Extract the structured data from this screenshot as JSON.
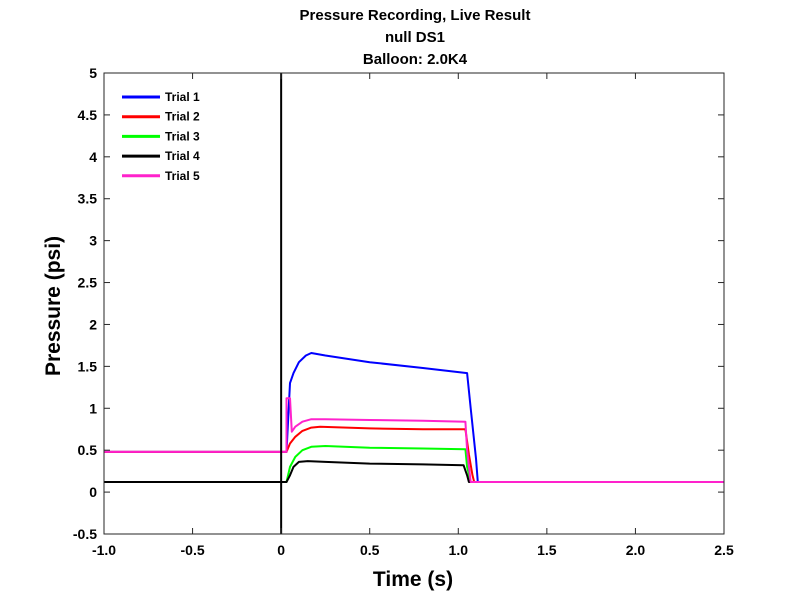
{
  "chart_data": {
    "type": "line",
    "title": [
      "Pressure Recording, Live Result",
      "null DS1",
      "Balloon: 2.0K4"
    ],
    "xlabel": "Time (s)",
    "ylabel": "Pressure (psi)",
    "xlim": [
      -1.0,
      2.5
    ],
    "ylim": [
      -0.5,
      5
    ],
    "x_ticks": [
      -1.0,
      -0.5,
      0,
      0.5,
      1.0,
      1.5,
      2.0,
      2.5
    ],
    "x_tick_labels": [
      "-1.0",
      "-0.5",
      "0",
      "0.5",
      "1.0",
      "1.5",
      "2.0",
      "2.5"
    ],
    "y_ticks": [
      -0.5,
      0,
      0.5,
      1,
      1.5,
      2,
      2.5,
      3,
      3.5,
      4,
      4.5,
      5
    ],
    "y_tick_labels": [
      "-0.5",
      "0",
      "0.5",
      "1",
      "1.5",
      "2",
      "2.5",
      "3",
      "3.5",
      "4",
      "4.5",
      "5"
    ],
    "grid": false,
    "legend_position": "top-left",
    "marker_line_x": 0,
    "series": [
      {
        "name": "Trial 1",
        "color": "#0000ff",
        "x": [
          -1.0,
          0.03,
          0.05,
          0.07,
          0.1,
          0.14,
          0.17,
          0.25,
          0.5,
          0.8,
          1.05,
          1.07,
          1.1,
          1.11,
          2.5
        ],
        "y": [
          0.48,
          0.48,
          1.3,
          1.42,
          1.55,
          1.63,
          1.66,
          1.63,
          1.55,
          1.48,
          1.42,
          1.0,
          0.4,
          0.12,
          0.12
        ]
      },
      {
        "name": "Trial 2",
        "color": "#ff0000",
        "x": [
          -1.0,
          0.03,
          0.05,
          0.08,
          0.12,
          0.17,
          0.22,
          0.5,
          0.8,
          1.04,
          1.06,
          1.08,
          1.09,
          2.5
        ],
        "y": [
          0.48,
          0.48,
          0.58,
          0.66,
          0.73,
          0.77,
          0.78,
          0.76,
          0.75,
          0.75,
          0.45,
          0.2,
          0.12,
          0.12
        ]
      },
      {
        "name": "Trial 3",
        "color": "#00ff00",
        "x": [
          -1.0,
          0.03,
          0.05,
          0.08,
          0.12,
          0.17,
          0.25,
          0.5,
          0.8,
          1.04,
          1.05,
          1.07,
          2.5
        ],
        "y": [
          0.12,
          0.12,
          0.3,
          0.42,
          0.5,
          0.54,
          0.55,
          0.53,
          0.52,
          0.51,
          0.3,
          0.12,
          0.12
        ]
      },
      {
        "name": "Trial 4",
        "color": "#000000",
        "x": [
          -1.0,
          0.03,
          0.05,
          0.07,
          0.1,
          0.15,
          0.25,
          0.5,
          0.8,
          1.03,
          1.05,
          1.06,
          2.5
        ],
        "y": [
          0.12,
          0.12,
          0.2,
          0.3,
          0.36,
          0.37,
          0.36,
          0.34,
          0.33,
          0.32,
          0.2,
          0.12,
          0.12
        ]
      },
      {
        "name": "Trial 5",
        "color": "#ff22cc",
        "x": [
          -1.0,
          0.03,
          0.03,
          0.05,
          0.06,
          0.08,
          0.12,
          0.17,
          0.25,
          0.5,
          0.8,
          1.04,
          1.05,
          1.07,
          2.5
        ],
        "y": [
          0.48,
          0.48,
          1.12,
          1.12,
          0.72,
          0.78,
          0.84,
          0.87,
          0.87,
          0.86,
          0.85,
          0.84,
          0.5,
          0.12,
          0.12
        ]
      }
    ]
  }
}
